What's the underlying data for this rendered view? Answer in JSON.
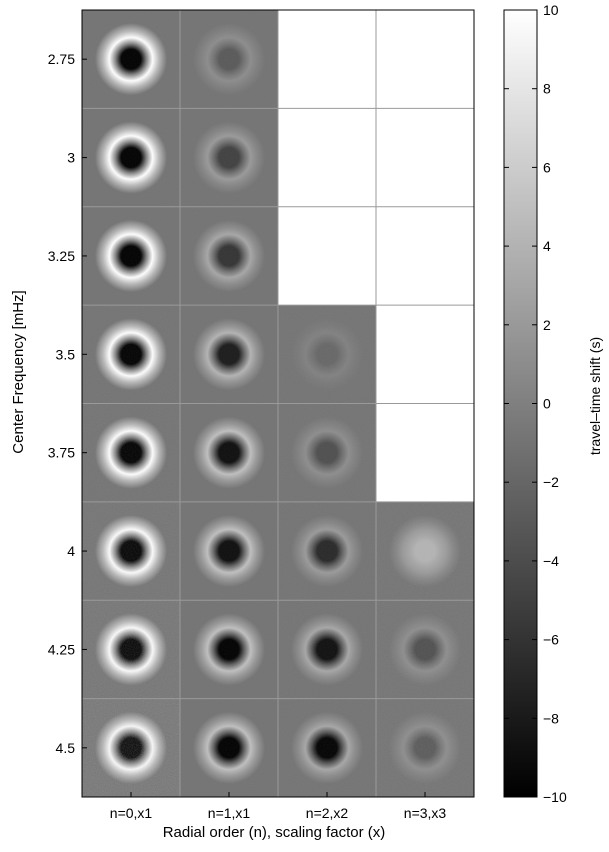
{
  "chart_data": {
    "type": "heatmap",
    "ylabel": "Center Frequency [mHz]",
    "xlabel": "Radial order (n), scaling factor (x)",
    "columns": [
      "n=0,x1",
      "n=1,x1",
      "n=2,x2",
      "n=3,x3"
    ],
    "rows": [
      "2.75",
      "3",
      "3.25",
      "3.5",
      "3.75",
      "4",
      "4.25",
      "4.5"
    ],
    "colorbar": {
      "label": "travel–time shift (s)",
      "range": [
        -10,
        10
      ],
      "ticks": [
        "10",
        "8",
        "6",
        "4",
        "2",
        "0",
        "−2",
        "−4",
        "−6",
        "−8",
        "−10"
      ],
      "colormap": "grayscale (black = -10, white = 10)"
    },
    "background_value": -1,
    "panels_present": [
      [
        true,
        true,
        false,
        false
      ],
      [
        true,
        true,
        false,
        false
      ],
      [
        true,
        true,
        false,
        false
      ],
      [
        true,
        true,
        true,
        false
      ],
      [
        true,
        true,
        true,
        false
      ],
      [
        true,
        true,
        true,
        true
      ],
      [
        true,
        true,
        true,
        true
      ],
      [
        true,
        true,
        true,
        true
      ]
    ],
    "empty_panel_color": "#ffffff",
    "panel_pattern": "radially symmetric travel-time shift map: dark negative core surrounded by a bright positive ring",
    "panels": [
      [
        {
          "core": -10,
          "ring": 10,
          "noise": 1
        },
        {
          "core": -3,
          "ring": 1,
          "noise": 1
        },
        null,
        null
      ],
      [
        {
          "core": -10,
          "ring": 10,
          "noise": 1
        },
        {
          "core": -5,
          "ring": 2,
          "noise": 1
        },
        null,
        null
      ],
      [
        {
          "core": -10,
          "ring": 10,
          "noise": 1
        },
        {
          "core": -6,
          "ring": 3,
          "noise": 1
        },
        null,
        null
      ],
      [
        {
          "core": -10,
          "ring": 10,
          "noise": 2
        },
        {
          "core": -8,
          "ring": 4,
          "noise": 1
        },
        {
          "core": -2,
          "ring": 0,
          "noise": 2
        },
        null
      ],
      [
        {
          "core": -10,
          "ring": 10,
          "noise": 3
        },
        {
          "core": -9,
          "ring": 5,
          "noise": 1
        },
        {
          "core": -4,
          "ring": 1,
          "noise": 2
        },
        null
      ],
      [
        {
          "core": -10,
          "ring": 10,
          "noise": 5
        },
        {
          "core": -9,
          "ring": 5,
          "noise": 1
        },
        {
          "core": -7,
          "ring": 2,
          "noise": 2
        },
        {
          "core": 4,
          "ring": 2,
          "noise": 4
        }
      ],
      [
        {
          "core": -10,
          "ring": 10,
          "noise": 7
        },
        {
          "core": -10,
          "ring": 5,
          "noise": 1
        },
        {
          "core": -9,
          "ring": 3,
          "noise": 2
        },
        {
          "core": -4,
          "ring": 1,
          "noise": 4
        }
      ],
      [
        {
          "core": -10,
          "ring": 10,
          "noise": 10
        },
        {
          "core": -10,
          "ring": 5,
          "noise": 1
        },
        {
          "core": -10,
          "ring": 3,
          "noise": 2
        },
        {
          "core": -3,
          "ring": 1,
          "noise": 4
        }
      ]
    ]
  }
}
